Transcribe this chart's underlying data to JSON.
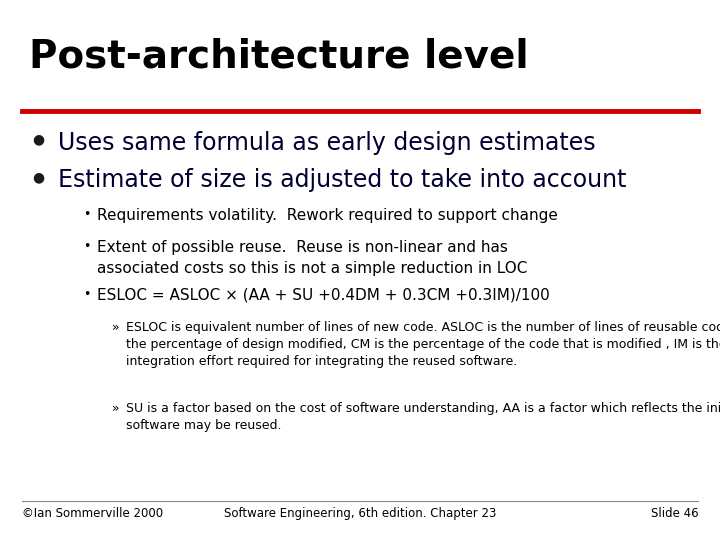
{
  "title": "Post-architecture level",
  "red_line_color": "#cc0000",
  "background_color": "#ffffff",
  "title_color": "#000000",
  "title_fontsize": 28,
  "bullet_color": "#000033",
  "bullet1": "Uses same formula as early design estimates",
  "bullet2": "Estimate of size is adjusted to take into account",
  "sub_bullets": [
    "Requirements volatility.  Rework required to support change",
    "Extent of possible reuse.  Reuse is non-linear and has\nassociated costs so this is not a simple reduction in LOC",
    "ESLOC = ASLOC × (AA + SU +0.4DM + 0.3CM +0.3IM)/100"
  ],
  "sub_sub_bullets": [
    "ESLOC is equivalent number of lines of new code. ASLOC is the number of lines of reusable code which must be modified, DM is\nthe percentage of design modified, CM is the percentage of the code that is modified , IM is the percentage of the original\nintegration effort required for integrating the reused software.",
    "SU is a factor based on the cost of software understanding, AA is a factor which reflects the initial assessment costs of deciding if\nsoftware may be reused."
  ],
  "footer_left": "©Ian Sommerville 2000",
  "footer_center": "Software Engineering, 6th edition. Chapter 23",
  "footer_right": "Slide 46",
  "footer_fontsize": 8.5
}
